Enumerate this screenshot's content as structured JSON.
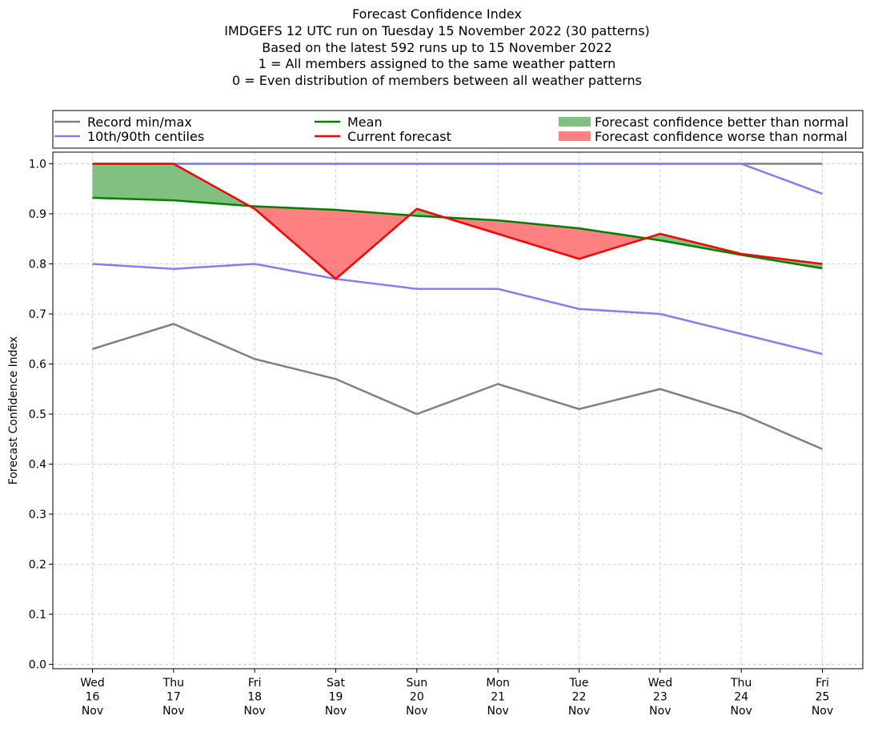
{
  "chart_data": {
    "type": "line",
    "title_lines": [
      "Forecast Confidence Index",
      "IMDGEFS 12 UTC run on Tuesday 15 November 2022 (30 patterns)",
      "Based on the latest 592 runs up to 15 November 2022",
      "1 = All members assigned to the same weather pattern",
      "0 = Even distribution of members between all weather patterns"
    ],
    "ylabel": "Forecast Confidence Index",
    "xlabel": "",
    "ylim": [
      0.0,
      1.0
    ],
    "yticks": [
      "0.0",
      "0.1",
      "0.2",
      "0.3",
      "0.4",
      "0.5",
      "0.6",
      "0.7",
      "0.8",
      "0.9",
      "1.0"
    ],
    "grid": true,
    "categories": [
      [
        "Wed",
        "16",
        "Nov"
      ],
      [
        "Thu",
        "17",
        "Nov"
      ],
      [
        "Fri",
        "18",
        "Nov"
      ],
      [
        "Sat",
        "19",
        "Nov"
      ],
      [
        "Sun",
        "20",
        "Nov"
      ],
      [
        "Mon",
        "21",
        "Nov"
      ],
      [
        "Tue",
        "22",
        "Nov"
      ],
      [
        "Wed",
        "23",
        "Nov"
      ],
      [
        "Thu",
        "24",
        "Nov"
      ],
      [
        "Fri",
        "25",
        "Nov"
      ]
    ],
    "series": [
      {
        "key": "record_min",
        "values": [
          0.63,
          0.68,
          0.61,
          0.57,
          0.5,
          0.56,
          0.51,
          0.55,
          0.5,
          0.43
        ],
        "color": "#808080"
      },
      {
        "key": "record_max",
        "values": [
          1.0,
          1.0,
          1.0,
          1.0,
          1.0,
          1.0,
          1.0,
          1.0,
          1.0,
          1.0
        ],
        "color": "#808080"
      },
      {
        "key": "centile_10",
        "values": [
          0.8,
          0.79,
          0.8,
          0.77,
          0.75,
          0.75,
          0.71,
          0.7,
          0.66,
          0.62
        ],
        "color": "#8080f0"
      },
      {
        "key": "centile_90",
        "values": [
          1.0,
          1.0,
          1.0,
          1.0,
          1.0,
          1.0,
          1.0,
          1.0,
          1.0,
          0.94
        ],
        "color": "#8080f0"
      },
      {
        "key": "mean",
        "values": [
          0.932,
          0.927,
          0.915,
          0.908,
          0.896,
          0.887,
          0.871,
          0.847,
          0.818,
          0.791
        ],
        "color": "#008000"
      },
      {
        "key": "current",
        "values": [
          1.0,
          1.0,
          0.91,
          0.77,
          0.91,
          0.86,
          0.81,
          0.86,
          0.82,
          0.8
        ],
        "color": "#ff0000"
      }
    ],
    "fill_better_color": "#80c080",
    "fill_worse_color": "#ff8080",
    "legend": {
      "placement": "top",
      "entries": [
        {
          "label": "Record min/max",
          "kind": "line",
          "color": "#808080"
        },
        {
          "label": "10th/90th centiles",
          "kind": "line",
          "color": "#8080f0"
        },
        {
          "label": "Mean",
          "kind": "line",
          "color": "#008000"
        },
        {
          "label": "Current forecast",
          "kind": "line",
          "color": "#ff0000"
        },
        {
          "label": "Forecast confidence better than normal",
          "kind": "patch",
          "color": "#80c080"
        },
        {
          "label": "Forecast confidence worse than normal",
          "kind": "patch",
          "color": "#ff8080"
        }
      ]
    }
  }
}
